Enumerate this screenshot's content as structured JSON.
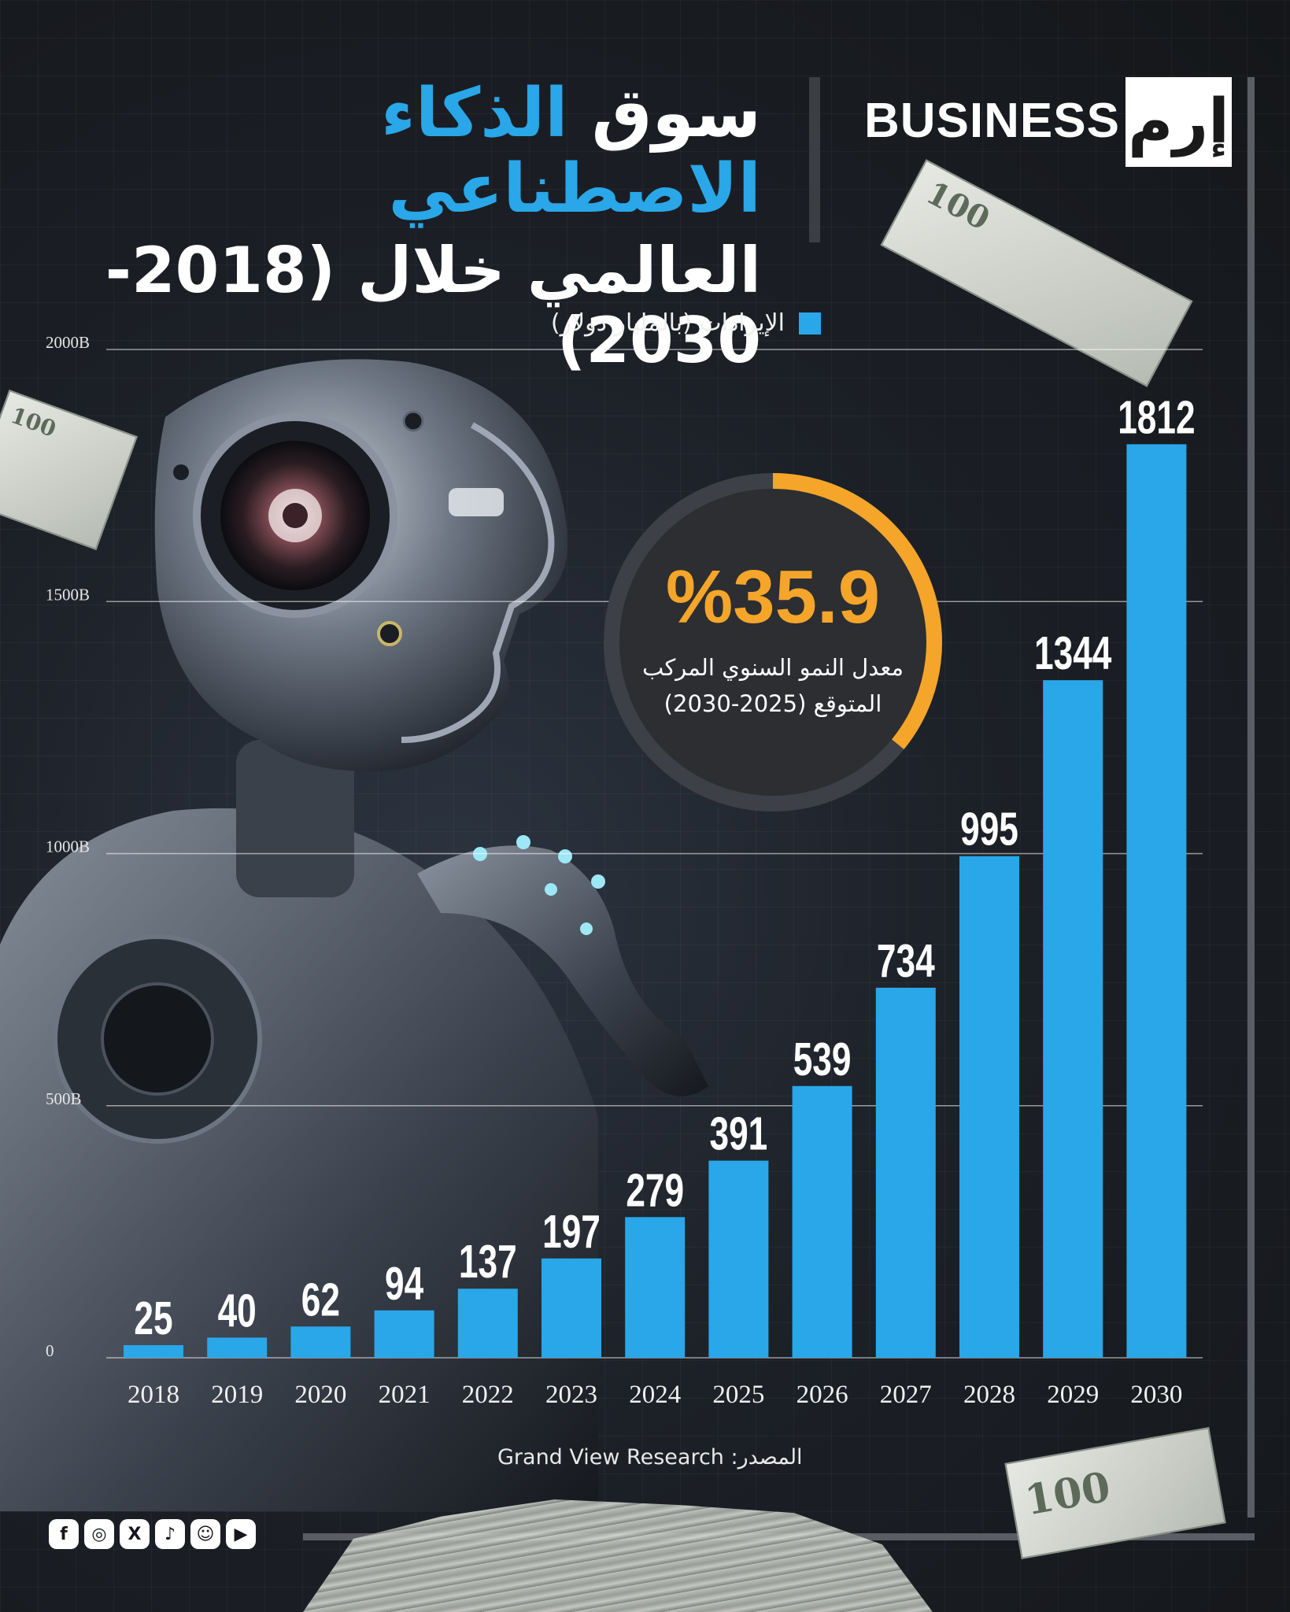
{
  "header": {
    "title_part1": "سوق",
    "title_highlight": "الذكاء الاصطناعي",
    "title_line2": "العالمي خلال (2018-2030)",
    "logo_text": "BUSINESS",
    "logo_mark": "إرم"
  },
  "legend": {
    "label": "الإيرادات (بالمليار دولار)",
    "color": "#29a7e8"
  },
  "cagr": {
    "value": "%35.9",
    "label_line1": "معدل النمو السنوي المركب",
    "label_line2": "المتوقع (2025-2030)",
    "ring_color": "#f5a52a",
    "fraction": 0.359
  },
  "chart_data": {
    "type": "bar",
    "title": "سوق الذكاء الاصطناعي العالمي خلال (2018-2030)",
    "xlabel": "",
    "ylabel": "الإيرادات (بالمليار دولار)",
    "categories": [
      "2018",
      "2019",
      "2020",
      "2021",
      "2022",
      "2023",
      "2024",
      "2025",
      "2026",
      "2027",
      "2028",
      "2029",
      "2030"
    ],
    "values": [
      25,
      40,
      62,
      94,
      137,
      197,
      279,
      391,
      539,
      734,
      995,
      1344,
      1812
    ],
    "ylim": [
      0,
      2000
    ],
    "yticks": [
      0,
      500,
      1000,
      1500,
      2000
    ],
    "ytick_labels": [
      "0",
      "500B",
      "1000B",
      "1500B",
      "2000B"
    ],
    "grid": true,
    "bar_color": "#29a7e8"
  },
  "source": {
    "text": "المصدر: Grand View Research"
  },
  "social": {
    "icons": [
      "facebook-icon",
      "instagram-icon",
      "x-icon",
      "tiktok-icon",
      "snapchat-icon",
      "youtube-icon"
    ],
    "glyphs": [
      "f",
      "◎",
      "X",
      "♪",
      "☺",
      "▶"
    ]
  }
}
